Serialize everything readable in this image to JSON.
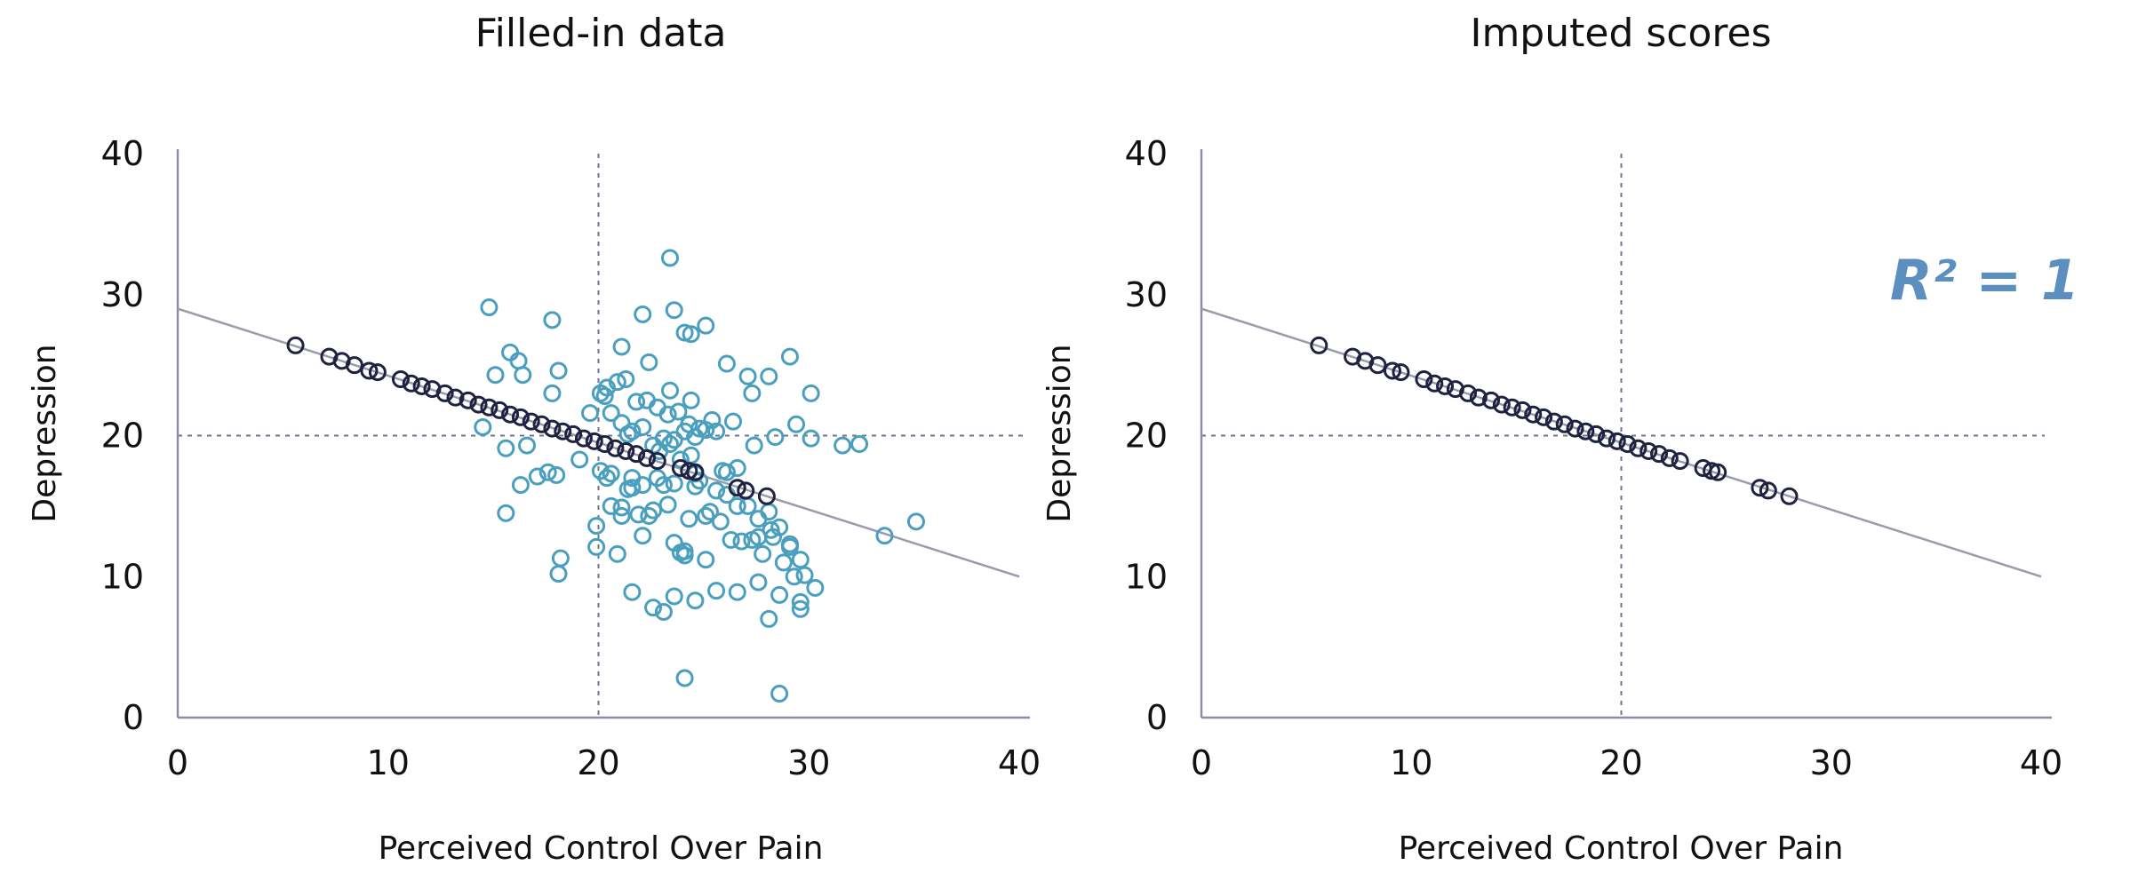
{
  "colors": {
    "background": "#ffffff",
    "axis": "#8a8ea6",
    "regression_line": "#9a9cae",
    "reference_line": "#6e7390",
    "observed_point": "#1f2240",
    "imputed_point": "#4a9fbf",
    "r2_text": "#5b8fbf",
    "text": "#111111"
  },
  "chart_data": [
    {
      "type": "scatter",
      "title": "Filled-in data",
      "xlabel": "Perceived Control Over Pain",
      "ylabel": "Depression",
      "xlim": [
        0,
        40
      ],
      "ylim": [
        0,
        40
      ],
      "xticks": [
        0,
        10,
        20,
        30,
        40
      ],
      "yticks": [
        0,
        10,
        20,
        30,
        40
      ],
      "grid": false,
      "reference_lines": {
        "x": 20,
        "y": 20,
        "style": "dotted"
      },
      "regression_line": {
        "x": [
          0,
          40
        ],
        "y": [
          29,
          10
        ]
      },
      "series": [
        {
          "role": "observed",
          "marker": "hollow-circle",
          "x": [
            5.6,
            7.2,
            7.8,
            8.4,
            9.1,
            9.5,
            10.6,
            11.1,
            11.6,
            12.1,
            12.7,
            13.2,
            13.8,
            14.3,
            14.8,
            15.3,
            15.8,
            16.3,
            16.8,
            17.3,
            17.8,
            18.3,
            18.8,
            19.3,
            19.8,
            20.3,
            20.8,
            21.3,
            21.8,
            22.3,
            22.8,
            23.9,
            24.3,
            24.6,
            26.6,
            27.0,
            28.0
          ],
          "y": [
            26.4,
            25.6,
            25.3,
            25.0,
            24.6,
            24.5,
            24.0,
            23.7,
            23.5,
            23.3,
            23.0,
            22.7,
            22.5,
            22.2,
            22.0,
            21.8,
            21.5,
            21.3,
            21.0,
            20.8,
            20.5,
            20.3,
            20.1,
            19.8,
            19.6,
            19.4,
            19.1,
            18.9,
            18.7,
            18.4,
            18.2,
            17.7,
            17.5,
            17.4,
            16.3,
            16.1,
            15.7
          ]
        },
        {
          "role": "imputed",
          "marker": "hollow-circle",
          "x": [
            14.8,
            15.8,
            16.2,
            16.4,
            17.8,
            18.1,
            14.5,
            15.6,
            16.6,
            17.1,
            17.6,
            18.0,
            15.1,
            15.6,
            16.3,
            17.8,
            18.2,
            18.1,
            19.1,
            19.6,
            20.1,
            20.4,
            19.9,
            20.6,
            20.9,
            21.1,
            21.4,
            21.6,
            21.9,
            22.1,
            22.4,
            22.6,
            22.8,
            23.1,
            23.3,
            23.6,
            23.9,
            24.1,
            24.3,
            24.6,
            24.8,
            25.1,
            20.3,
            20.6,
            21.1,
            21.6,
            22.1,
            22.6,
            23.1,
            23.6,
            24.1,
            24.6,
            25.1,
            25.6,
            26.1,
            26.6,
            27.1,
            27.6,
            28.1,
            28.6,
            29.1,
            29.6,
            30.1,
            20.1,
            20.4,
            20.9,
            21.3,
            21.8,
            22.3,
            22.8,
            23.3,
            23.8,
            24.3,
            24.8,
            25.3,
            25.8,
            26.3,
            26.8,
            27.3,
            27.8,
            28.3,
            28.8,
            29.3,
            29.8,
            30.3,
            21.6,
            22.6,
            23.1,
            23.6,
            24.6,
            25.6,
            26.6,
            27.6,
            28.6,
            29.6,
            22.1,
            23.6,
            24.1,
            25.1,
            26.1,
            27.1,
            27.3,
            28.1,
            29.1,
            30.1,
            21.1,
            22.4,
            23.4,
            24.4,
            25.4,
            26.4,
            27.4,
            28.4,
            29.4,
            23.4,
            24.4,
            25.6,
            26.6,
            27.6,
            28.2,
            29.1,
            21.4,
            22.9,
            23.9,
            25.9,
            20.6,
            21.6,
            23.6,
            24.6,
            26.1,
            19.9,
            21.1,
            22.1,
            24.1,
            25.1,
            28.1,
            29.6,
            31.6,
            32.4,
            33.6,
            35.1,
            23.4,
            24.4,
            24.1,
            28.6
          ],
          "y": [
            29.1,
            25.9,
            25.3,
            24.3,
            28.2,
            24.6,
            20.6,
            19.1,
            19.3,
            17.1,
            17.4,
            17.2,
            24.3,
            14.5,
            16.5,
            23.0,
            11.3,
            10.2,
            18.3,
            21.6,
            17.5,
            17.0,
            12.1,
            15.0,
            11.6,
            14.3,
            16.2,
            16.3,
            14.4,
            16.5,
            14.3,
            14.7,
            17.0,
            16.5,
            15.1,
            12.4,
            11.7,
            11.5,
            14.1,
            17.3,
            16.8,
            14.3,
            22.8,
            21.6,
            20.9,
            20.3,
            20.6,
            19.3,
            19.8,
            19.7,
            20.3,
            19.9,
            20.4,
            20.3,
            17.4,
            17.7,
            15.0,
            12.8,
            14.6,
            13.5,
            12.3,
            11.2,
            19.8,
            23.0,
            23.4,
            23.8,
            24.0,
            22.4,
            22.5,
            22.0,
            21.5,
            21.7,
            20.8,
            20.5,
            14.6,
            13.9,
            12.6,
            12.5,
            12.6,
            11.6,
            12.8,
            11.0,
            10.0,
            10.1,
            9.2,
            8.9,
            7.8,
            7.5,
            8.6,
            8.3,
            9.0,
            8.9,
            9.6,
            8.7,
            8.2,
            28.6,
            28.9,
            27.3,
            27.8,
            25.1,
            24.2,
            23.0,
            24.2,
            25.6,
            23.0,
            26.3,
            25.2,
            23.2,
            22.5,
            21.1,
            21.0,
            19.3,
            19.9,
            20.8,
            19.4,
            18.6,
            16.1,
            15.0,
            14.1,
            13.3,
            12.1,
            20.1,
            18.9,
            18.3,
            17.5,
            17.3,
            17.0,
            16.6,
            16.4,
            15.8,
            13.6,
            14.9,
            12.9,
            11.8,
            11.2,
            7.0,
            7.7,
            19.3,
            19.4,
            12.9,
            13.9,
            32.6,
            27.2,
            2.8,
            1.7
          ]
        }
      ]
    },
    {
      "type": "scatter",
      "title": "Imputed scores",
      "xlabel": "Perceived Control Over Pain",
      "ylabel": "Depression",
      "xlim": [
        0,
        40
      ],
      "ylim": [
        0,
        40
      ],
      "xticks": [
        0,
        10,
        20,
        30,
        40
      ],
      "yticks": [
        0,
        10,
        20,
        30,
        40
      ],
      "grid": false,
      "reference_lines": {
        "x": 20,
        "y": 20,
        "style": "dotted"
      },
      "regression_line": {
        "x": [
          0,
          40
        ],
        "y": [
          29,
          10
        ]
      },
      "annotation": {
        "text": "R² = 1",
        "position": "top-right"
      },
      "series": [
        {
          "role": "observed",
          "marker": "hollow-circle",
          "x": [
            5.6,
            7.2,
            7.8,
            8.4,
            9.1,
            9.5,
            10.6,
            11.1,
            11.6,
            12.1,
            12.7,
            13.2,
            13.8,
            14.3,
            14.8,
            15.3,
            15.8,
            16.3,
            16.8,
            17.3,
            17.8,
            18.3,
            18.8,
            19.3,
            19.8,
            20.3,
            20.8,
            21.3,
            21.8,
            22.3,
            22.8,
            23.9,
            24.3,
            24.6,
            26.6,
            27.0,
            28.0
          ],
          "y": [
            26.4,
            25.6,
            25.3,
            25.0,
            24.6,
            24.5,
            24.0,
            23.7,
            23.5,
            23.3,
            23.0,
            22.7,
            22.5,
            22.2,
            22.0,
            21.8,
            21.5,
            21.3,
            21.0,
            20.8,
            20.5,
            20.3,
            20.1,
            19.8,
            19.6,
            19.4,
            19.1,
            18.9,
            18.7,
            18.4,
            18.2,
            17.7,
            17.5,
            17.4,
            16.3,
            16.1,
            15.7
          ]
        }
      ]
    }
  ]
}
